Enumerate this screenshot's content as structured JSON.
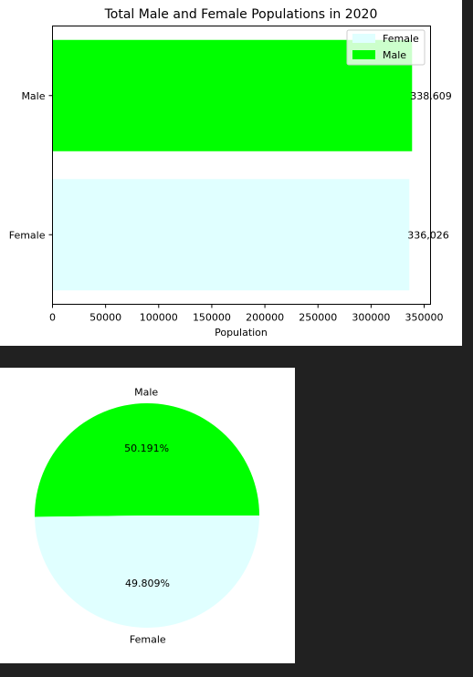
{
  "chart_data": [
    {
      "type": "bar",
      "orientation": "horizontal",
      "title": "Total Male and Female Populations in 2020",
      "xlabel": "Population",
      "ylabel": "",
      "xlim": [
        0,
        356000
      ],
      "x_ticks": [
        0,
        50000,
        100000,
        150000,
        200000,
        250000,
        300000,
        350000
      ],
      "categories": [
        "Male",
        "Female"
      ],
      "values": [
        338609,
        336026
      ],
      "value_labels": [
        "338,609",
        "336,026"
      ],
      "colors": [
        "#00ff00",
        "#e0ffff"
      ],
      "legend": {
        "placement": "top-right",
        "entries": [
          {
            "label": "Female",
            "color": "#e0ffff"
          },
          {
            "label": "Male",
            "color": "#00ff00"
          }
        ]
      }
    },
    {
      "type": "pie",
      "labels": [
        "Male",
        "Female"
      ],
      "values": [
        338609,
        336026
      ],
      "percent_labels": [
        "50.191%",
        "49.809%"
      ],
      "colors": [
        "#00ff00",
        "#e0ffff"
      ]
    }
  ]
}
